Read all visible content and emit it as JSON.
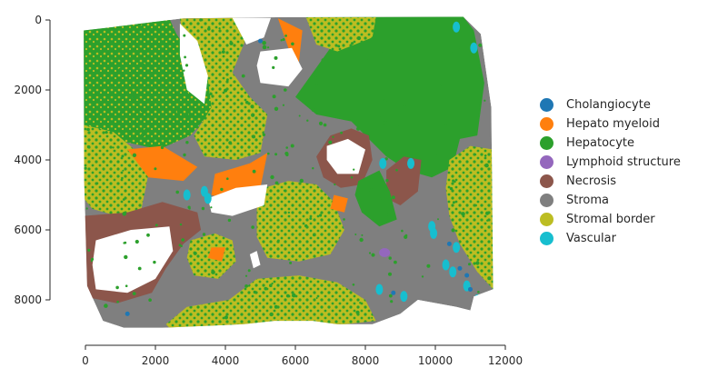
{
  "chart_data": {
    "type": "scatter",
    "title": "",
    "xlabel": "",
    "ylabel": "",
    "xlim": [
      0,
      12000
    ],
    "ylim": [
      9200,
      0
    ],
    "y_axis_inverted": true,
    "xticks": [
      "0",
      "2000",
      "4000",
      "6000",
      "8000",
      "10000",
      "12000"
    ],
    "yticks": [
      "0",
      "2000",
      "4000",
      "6000",
      "8000"
    ],
    "grid": false,
    "legend_position": "right",
    "series": [
      {
        "name": "Cholangiocyte",
        "color": "#1f77b4"
      },
      {
        "name": "Hepato myeloid",
        "color": "#ff7f0e"
      },
      {
        "name": "Hepatocyte",
        "color": "#2ca02c"
      },
      {
        "name": "Lymphoid structure",
        "color": "#9467bd"
      },
      {
        "name": "Necrosis",
        "color": "#8c564b"
      },
      {
        "name": "Stroma",
        "color": "#7f7f7f"
      },
      {
        "name": "Stromal border",
        "color": "#bcbd22"
      },
      {
        "name": "Vascular",
        "color": "#17becf"
      }
    ]
  }
}
